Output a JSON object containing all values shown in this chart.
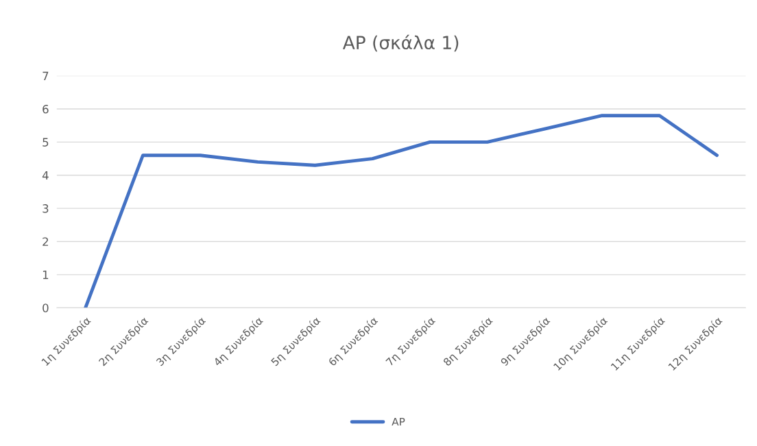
{
  "chart_data": {
    "type": "line",
    "title": "AP (σκάλα 1)",
    "categories": [
      "1η Συνεδρία",
      "2η Συνεδρία",
      "3η Συνεδρία",
      "4η Συνεδρία",
      "5η Συνεδρία",
      "6η Συνεδρία",
      "7η Συνεδρία",
      "8η Συνεδρία",
      "9η Συνεδρία",
      "10η Συνεδρία",
      "11η Συνεδρία",
      "12η Συνεδρία"
    ],
    "series": [
      {
        "name": "AP",
        "color": "#4472c4",
        "values": [
          0,
          4.6,
          4.6,
          4.4,
          4.3,
          4.5,
          5,
          5,
          5.4,
          5.8,
          5.8,
          4.6
        ]
      }
    ],
    "ylim": [
      0,
      7
    ],
    "yticks": [
      0,
      1,
      2,
      3,
      4,
      5,
      6,
      7
    ],
    "grid": "y",
    "legend": "bottom",
    "marker": "none",
    "line_style": "solid"
  }
}
